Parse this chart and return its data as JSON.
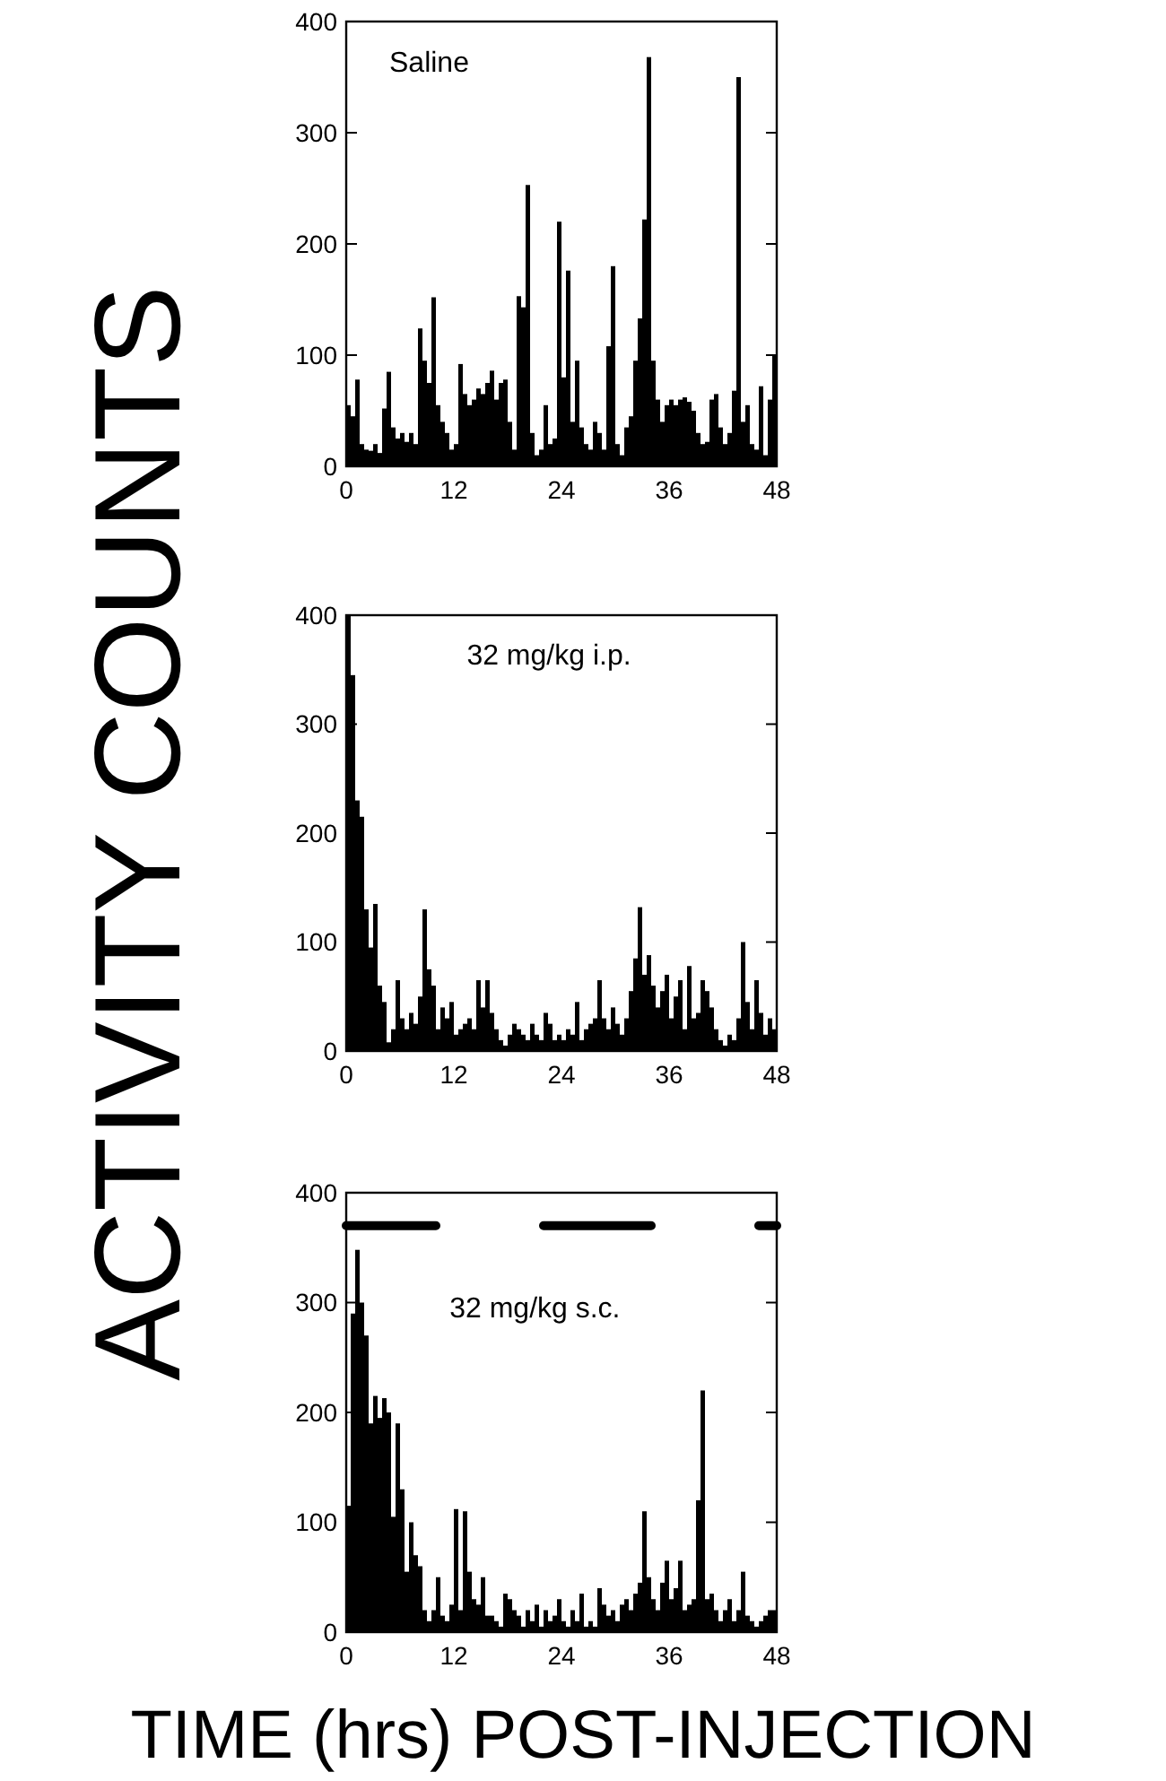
{
  "chart_data": [
    {
      "type": "histogram",
      "annotations": [
        "Saline"
      ],
      "bins": [
        0,
        0.5,
        1,
        1.5,
        2,
        2.5,
        3,
        3.5,
        4,
        4.5,
        5,
        5.5,
        6,
        6.5,
        7,
        7.5,
        8,
        8.5,
        9,
        9.5,
        10,
        10.5,
        11,
        11.5,
        12,
        12.5,
        13,
        13.5,
        14,
        14.5,
        15,
        15.5,
        16,
        16.5,
        17,
        17.5,
        18,
        18.5,
        19,
        19.5,
        20,
        20.5,
        21,
        21.5,
        22,
        22.5,
        23,
        23.5,
        24,
        24.5,
        25,
        25.5,
        26,
        26.5,
        27,
        27.5,
        28,
        28.5,
        29,
        29.5,
        30,
        30.5,
        31,
        31.5,
        32,
        32.5,
        33,
        33.5,
        34,
        34.5,
        35,
        35.5,
        36,
        36.5,
        37,
        37.5,
        38,
        38.5,
        39,
        39.5,
        40,
        40.5,
        41,
        41.5,
        42,
        42.5,
        43,
        43.5,
        44,
        44.5,
        45,
        45.5,
        46,
        46.5,
        47,
        47.5,
        48
      ],
      "color": "#000000",
      "values": [
        55,
        45,
        78,
        20,
        15,
        14,
        20,
        12,
        52,
        85,
        35,
        25,
        30,
        22,
        30,
        20,
        124,
        95,
        75,
        152,
        55,
        40,
        30,
        15,
        20,
        92,
        65,
        55,
        60,
        70,
        65,
        75,
        86,
        60,
        75,
        78,
        40,
        15,
        153,
        143,
        253,
        30,
        10,
        15,
        55,
        20,
        25,
        220,
        80,
        176,
        40,
        95,
        35,
        20,
        15,
        40,
        30,
        15,
        108,
        180,
        20,
        10,
        35,
        45,
        95,
        133,
        222,
        368,
        95,
        60,
        40,
        55,
        60,
        55,
        60,
        62,
        58,
        50,
        30,
        20,
        22,
        60,
        65,
        35,
        20,
        30,
        68,
        350,
        40,
        55,
        20,
        15,
        72,
        10,
        60,
        100
      ],
      "xlim": [
        0,
        48
      ],
      "xticks": [
        0,
        12,
        24,
        36,
        48
      ],
      "ylim": [
        0,
        400
      ],
      "yticks": [
        0,
        100,
        200,
        300,
        400
      ]
    },
    {
      "type": "histogram",
      "ylabel": "ACTIVITY COUNTS",
      "annotations": [
        "32 mg/kg i.p."
      ],
      "bins": [
        0,
        0.5,
        1,
        1.5,
        2,
        2.5,
        3,
        3.5,
        4,
        4.5,
        5,
        5.5,
        6,
        6.5,
        7,
        7.5,
        8,
        8.5,
        9,
        9.5,
        10,
        10.5,
        11,
        11.5,
        12,
        12.5,
        13,
        13.5,
        14,
        14.5,
        15,
        15.5,
        16,
        16.5,
        17,
        17.5,
        18,
        18.5,
        19,
        19.5,
        20,
        20.5,
        21,
        21.5,
        22,
        22.5,
        23,
        23.5,
        24,
        24.5,
        25,
        25.5,
        26,
        26.5,
        27,
        27.5,
        28,
        28.5,
        29,
        29.5,
        30,
        30.5,
        31,
        31.5,
        32,
        32.5,
        33,
        33.5,
        34,
        34.5,
        35,
        35.5,
        36,
        36.5,
        37,
        37.5,
        38,
        38.5,
        39,
        39.5,
        40,
        40.5,
        41,
        41.5,
        42,
        42.5,
        43,
        43.5,
        44,
        44.5,
        45,
        45.5,
        46,
        46.5,
        47,
        47.5,
        48
      ],
      "color": "#000000",
      "values": [
        400,
        345,
        230,
        215,
        130,
        95,
        135,
        60,
        45,
        8,
        20,
        65,
        30,
        20,
        35,
        25,
        50,
        130,
        75,
        60,
        20,
        40,
        30,
        45,
        15,
        20,
        25,
        30,
        20,
        65,
        40,
        65,
        35,
        20,
        10,
        5,
        15,
        25,
        20,
        15,
        10,
        25,
        15,
        10,
        35,
        25,
        10,
        15,
        10,
        20,
        15,
        45,
        10,
        20,
        25,
        30,
        65,
        30,
        20,
        40,
        25,
        15,
        30,
        55,
        85,
        132,
        70,
        88,
        60,
        40,
        55,
        70,
        30,
        50,
        65,
        20,
        78,
        30,
        35,
        65,
        55,
        40,
        20,
        10,
        5,
        15,
        10,
        30,
        100,
        45,
        20,
        65,
        35,
        15,
        30,
        20
      ],
      "xlim": [
        0,
        48
      ],
      "xticks": [
        0,
        12,
        24,
        36,
        48
      ],
      "ylim": [
        0,
        400
      ],
      "yticks": [
        0,
        100,
        200,
        300,
        400
      ]
    },
    {
      "type": "histogram",
      "xlabel": "TIME (hrs) POST-INJECTION",
      "annotations": [
        "32 mg/kg s.c."
      ],
      "bins": [
        0,
        0.5,
        1,
        1.5,
        2,
        2.5,
        3,
        3.5,
        4,
        4.5,
        5,
        5.5,
        6,
        6.5,
        7,
        7.5,
        8,
        8.5,
        9,
        9.5,
        10,
        10.5,
        11,
        11.5,
        12,
        12.5,
        13,
        13.5,
        14,
        14.5,
        15,
        15.5,
        16,
        16.5,
        17,
        17.5,
        18,
        18.5,
        19,
        19.5,
        20,
        20.5,
        21,
        21.5,
        22,
        22.5,
        23,
        23.5,
        24,
        24.5,
        25,
        25.5,
        26,
        26.5,
        27,
        27.5,
        28,
        28.5,
        29,
        29.5,
        30,
        30.5,
        31,
        31.5,
        32,
        32.5,
        33,
        33.5,
        34,
        34.5,
        35,
        35.5,
        36,
        36.5,
        37,
        37.5,
        38,
        38.5,
        39,
        39.5,
        40,
        40.5,
        41,
        41.5,
        42,
        42.5,
        43,
        43.5,
        44,
        44.5,
        45,
        45.5,
        46,
        46.5,
        47,
        47.5,
        48
      ],
      "series": [
        {
          "type": "histogram",
          "color": "#000000",
          "values": [
            115,
            290,
            348,
            300,
            270,
            190,
            215,
            195,
            213,
            200,
            105,
            190,
            130,
            55,
            100,
            70,
            60,
            20,
            10,
            20,
            50,
            15,
            10,
            25,
            112,
            20,
            110,
            55,
            30,
            25,
            50,
            15,
            15,
            10,
            5,
            35,
            30,
            20,
            15,
            5,
            20,
            10,
            25,
            5,
            20,
            10,
            15,
            30,
            10,
            5,
            20,
            10,
            35,
            5,
            10,
            5,
            40,
            25,
            15,
            20,
            10,
            25,
            30,
            20,
            35,
            45,
            110,
            50,
            30,
            20,
            45,
            65,
            30,
            40,
            65,
            20,
            25,
            30,
            120,
            220,
            30,
            35,
            20,
            10,
            20,
            30,
            10,
            20,
            55,
            15,
            10,
            5,
            10,
            15,
            20,
            20
          ]
        },
        {
          "type": "line",
          "color": "#000000",
          "x": [
            0,
            10,
            16,
            22,
            34,
            40,
            46,
            48
          ],
          "values": [
            370,
            370,
            null,
            370,
            370,
            null,
            370,
            370
          ]
        }
      ],
      "xlim": [
        0,
        48
      ],
      "xticks": [
        0,
        12,
        24,
        36,
        48
      ],
      "ylim": [
        0,
        400
      ],
      "yticks": [
        0,
        100,
        200,
        300,
        400
      ]
    }
  ]
}
